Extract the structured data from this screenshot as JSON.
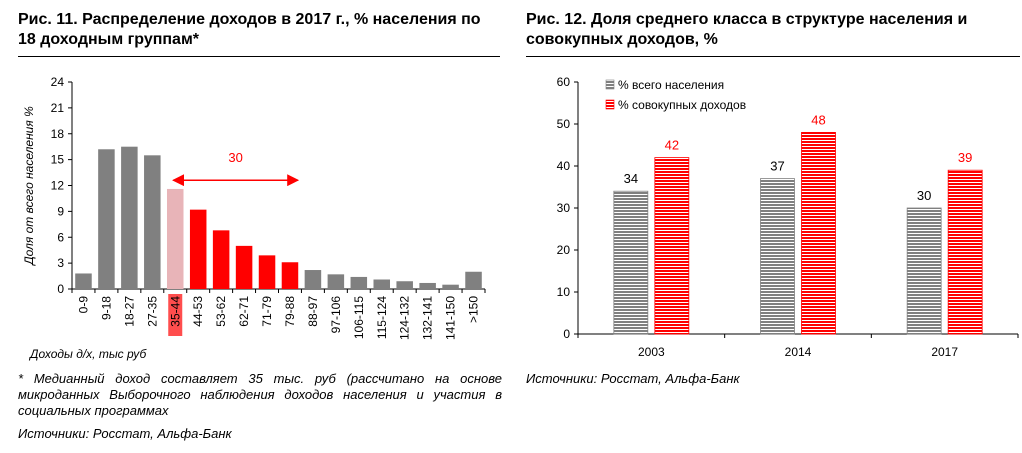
{
  "left": {
    "title": "Рис. 11. Распределение доходов в 2017 г., % населения по 18 доходным группам*",
    "footnote": "* Медианный доход составляет 35 тыс. руб (рассчитано на основе микроданных Выборочного наблюдения доходов населения и участия в социальных программах",
    "source": "Источники: Росстат, Альфа-Банк"
  },
  "right": {
    "title": "Рис. 12. Доля среднего класса в структуре населения и совокупных доходов, %",
    "source": "Источники: Росстат, Альфа-Банк"
  },
  "chart_data": [
    {
      "type": "bar",
      "title": "Рис. 11. Распределение доходов в 2017 г., % населения по 18 доходным группам*",
      "xlabel": "Доходы д/х, тыс руб",
      "ylabel": "Доля от всего населения %",
      "ylim": [
        0,
        24
      ],
      "yticks": [
        0,
        3,
        6,
        9,
        12,
        15,
        18,
        21,
        24
      ],
      "grid": false,
      "categories": [
        "0-9",
        "9-18",
        "18-27",
        "27-35",
        "35-44",
        "44-53",
        "53-62",
        "62-71",
        "71-79",
        "79-88",
        "88-97",
        "97-106",
        "106-115",
        "115-124",
        "124-132",
        "132-141",
        "141-150",
        ">150"
      ],
      "values": [
        1.8,
        16.2,
        16.5,
        15.5,
        11.6,
        9.2,
        6.8,
        5.0,
        3.9,
        3.1,
        2.2,
        1.7,
        1.4,
        1.1,
        0.9,
        0.7,
        0.5,
        2.0
      ],
      "colors": [
        "#808080",
        "#808080",
        "#808080",
        "#808080",
        "#e8b4b8",
        "#ff0000",
        "#ff0000",
        "#ff0000",
        "#ff0000",
        "#ff0000",
        "#808080",
        "#808080",
        "#808080",
        "#808080",
        "#808080",
        "#808080",
        "#808080",
        "#808080"
      ],
      "highlight_label_bg": "#ff4d4d",
      "annotation": {
        "text": "30",
        "color": "#ff0000",
        "from_category": "35-44",
        "to_category": "79-88",
        "y": 12.5
      }
    },
    {
      "type": "bar",
      "title": "Рис. 12. Доля среднего класса в структуре населения и совокупных доходов, %",
      "ylim": [
        0,
        60
      ],
      "yticks": [
        0,
        10,
        20,
        30,
        40,
        50,
        60
      ],
      "grid": false,
      "legend_position": "top-left",
      "categories": [
        "2003",
        "2014",
        "2017"
      ],
      "series": [
        {
          "name": "% всего населения",
          "values": [
            34,
            37,
            30
          ],
          "color": "#808080",
          "label_color": "#000000"
        },
        {
          "name": "% совокупных доходов",
          "values": [
            42,
            48,
            39
          ],
          "color": "#ff0000",
          "label_color": "#ff0000"
        }
      ]
    }
  ]
}
